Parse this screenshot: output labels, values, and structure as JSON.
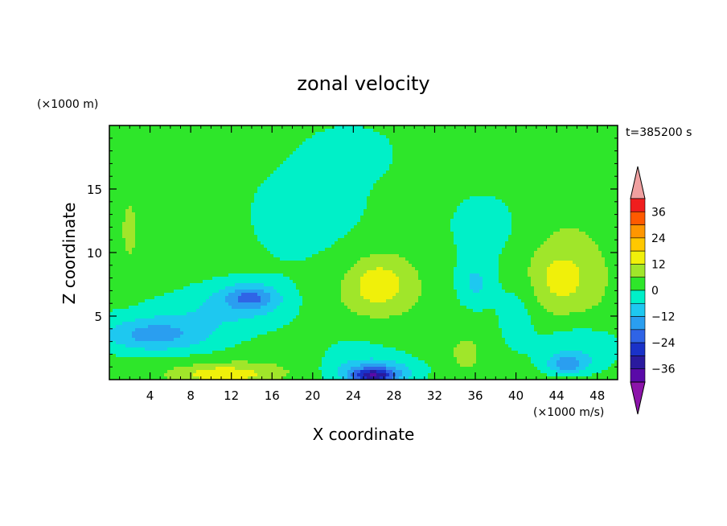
{
  "chart_data": {
    "type": "heatmap",
    "title": "zonal velocity",
    "time_label": "t=385200 s",
    "xlabel": "X coordinate",
    "ylabel": "Z coordinate",
    "x_units": "(×1000 m/s)",
    "y_units": "(×1000 m)",
    "xlim": [
      0,
      50
    ],
    "ylim": [
      0,
      20
    ],
    "x_ticks": [
      "4",
      "8",
      "12",
      "16",
      "20",
      "24",
      "28",
      "32",
      "36",
      "40",
      "44",
      "48"
    ],
    "y_ticks": [
      "5",
      "10",
      "15"
    ],
    "colorbar": {
      "tick_labels": [
        "36",
        "24",
        "12",
        "0",
        "−12",
        "−24",
        "−36"
      ],
      "levels": [
        -42,
        -36,
        -30,
        -24,
        -18,
        -12,
        -6,
        0,
        6,
        12,
        18,
        24,
        30,
        36,
        42
      ],
      "colors": [
        "#5a0aa8",
        "#2a1a9e",
        "#1a32c8",
        "#2f64e6",
        "#2a9ef0",
        "#1ec8f0",
        "#00f0c8",
        "#2ee62a",
        "#a0e62a",
        "#f0f00a",
        "#ffc800",
        "#ff9600",
        "#ff5a00",
        "#f01e1e"
      ],
      "under_color": "#8c14aa",
      "over_color": "#f0a0a0"
    },
    "field_background_value": 3,
    "features": [
      {
        "x": 26,
        "z": 7,
        "rx": 5.5,
        "rz": 4.5,
        "value": 9
      },
      {
        "x": 26.5,
        "z": 7.5,
        "rx": 2.5,
        "rz": 1.7,
        "value": 14
      },
      {
        "x": 45,
        "z": 8,
        "rx": 5.5,
        "rz": 6,
        "value": 8
      },
      {
        "x": 44.5,
        "z": 8,
        "rx": 2.5,
        "rz": 2,
        "value": 12
      },
      {
        "x": 12,
        "z": 0.7,
        "rx": 8,
        "rz": 1.1,
        "value": 9
      },
      {
        "x": 11,
        "z": 0.4,
        "rx": 4,
        "rz": 0.6,
        "value": 14
      },
      {
        "x": 2,
        "z": 12,
        "rx": 1.5,
        "rz": 5,
        "value": 7
      },
      {
        "x": 35,
        "z": 2,
        "rx": 2,
        "rz": 1.8,
        "value": 8
      },
      {
        "x": 25,
        "z": 2.5,
        "rx": 6,
        "rz": 2.5,
        "value": -3
      },
      {
        "x": 26,
        "z": 0.6,
        "rx": 4,
        "rz": 1,
        "value": -16
      },
      {
        "x": 26,
        "z": 0.3,
        "rx": 2,
        "rz": 0.5,
        "value": -22
      },
      {
        "x": 6,
        "z": 4,
        "rx": 7,
        "rz": 2.5,
        "value": -5
      },
      {
        "x": 4,
        "z": 3.5,
        "rx": 5,
        "rz": 1.2,
        "value": -10
      },
      {
        "x": 13,
        "z": 6,
        "rx": 5,
        "rz": 1.8,
        "value": -8
      },
      {
        "x": 14,
        "z": 6.5,
        "rx": 2.5,
        "rz": 0.9,
        "value": -12
      },
      {
        "x": 20,
        "z": 13,
        "rx": 7,
        "rz": 5,
        "value": -4
      },
      {
        "x": 24,
        "z": 18,
        "rx": 4,
        "rz": 2,
        "value": -4
      },
      {
        "x": 27,
        "z": 14,
        "rx": 2.5,
        "rz": 0.9,
        "value": 3
      },
      {
        "x": 37,
        "z": 12,
        "rx": 4,
        "rz": 3,
        "value": -4
      },
      {
        "x": 36,
        "z": 7.5,
        "rx": 2,
        "rz": 2,
        "value": -8
      },
      {
        "x": 46,
        "z": 2.5,
        "rx": 4.5,
        "rz": 2,
        "value": -8
      },
      {
        "x": 45,
        "z": 1.2,
        "rx": 2,
        "rz": 0.7,
        "value": -14
      },
      {
        "x": 40,
        "z": 5,
        "rx": 2,
        "rz": 2.5,
        "value": -5
      },
      {
        "x": 2,
        "z": 17,
        "rx": 5,
        "rz": 3,
        "value": 2
      }
    ]
  }
}
